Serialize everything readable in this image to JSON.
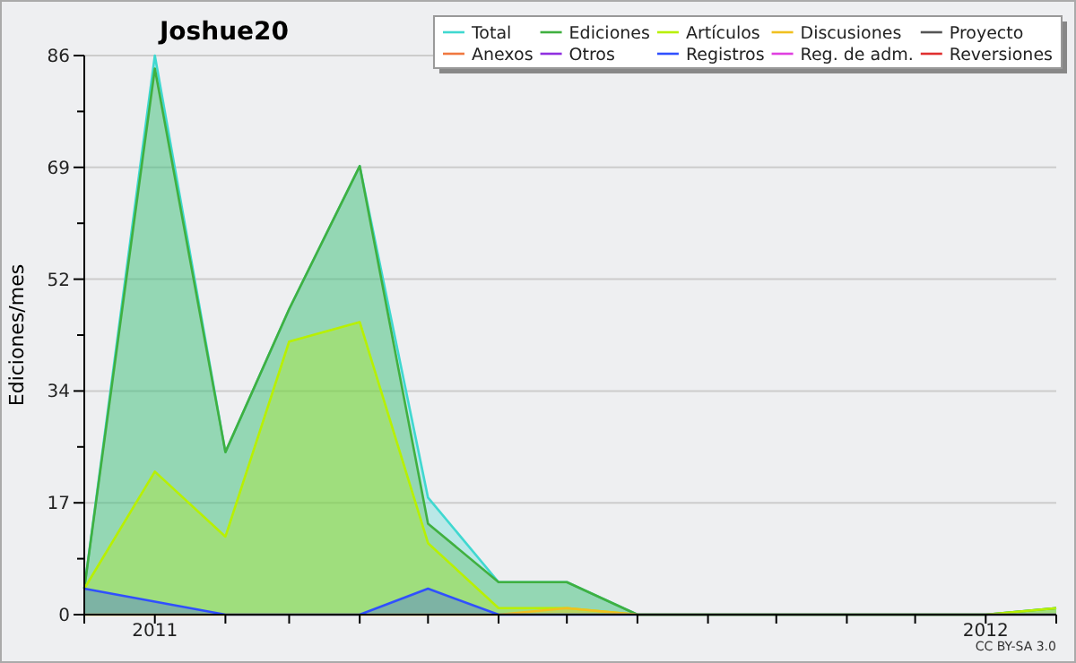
{
  "chart_data": {
    "type": "area",
    "title": "Joshue20",
    "ylabel": "Ediciones/mes",
    "x": [
      "2010-12",
      "2011-01",
      "2011-02",
      "2011-03",
      "2011-04",
      "2011-05",
      "2011-06",
      "2011-07",
      "2011-08",
      "2011-09",
      "2011-10",
      "2011-11",
      "2011-12",
      "2012-01",
      "2012-02"
    ],
    "xlim": [
      "2010-12",
      "2012-02"
    ],
    "xticks": [
      {
        "value": "2010-12",
        "label": null
      },
      {
        "value": "2011-01",
        "label": "2011"
      },
      {
        "value": "2011-02",
        "label": null
      },
      {
        "value": "2011-03",
        "label": null
      },
      {
        "value": "2011-04",
        "label": null
      },
      {
        "value": "2011-05",
        "label": null
      },
      {
        "value": "2011-06",
        "label": null
      },
      {
        "value": "2011-07",
        "label": null
      },
      {
        "value": "2011-08",
        "label": null
      },
      {
        "value": "2011-09",
        "label": null
      },
      {
        "value": "2011-10",
        "label": null
      },
      {
        "value": "2011-11",
        "label": null
      },
      {
        "value": "2011-12",
        "label": null
      },
      {
        "value": "2012-01",
        "label": "2012"
      },
      {
        "value": "2012-02",
        "label": null
      }
    ],
    "ylim": [
      0,
      86
    ],
    "yticks": [
      0,
      {
        "value": 8.6,
        "label": null
      },
      {
        "value": 17.2,
        "label": "17"
      },
      {
        "value": 25.8,
        "label": null
      },
      {
        "value": 34.4,
        "label": "34"
      },
      {
        "value": 43,
        "label": null
      },
      {
        "value": 51.6,
        "label": "52"
      },
      {
        "value": 60.2,
        "label": null
      },
      {
        "value": 68.8,
        "label": "69"
      },
      {
        "value": 77.4,
        "label": null
      },
      86
    ],
    "grid": "y",
    "legend": "top right",
    "marker": "none",
    "line_style": "solid",
    "annotations": [
      "CC BY-SA 3.0"
    ],
    "series": [
      {
        "name": "Total",
        "color": "#40d8d0",
        "values": [
          4,
          86,
          25,
          47,
          69,
          18,
          5,
          5,
          0,
          0,
          0,
          0,
          0,
          0,
          1
        ]
      },
      {
        "name": "Ediciones",
        "color": "#40b040",
        "values": [
          4,
          84,
          25,
          47,
          69,
          14,
          5,
          5,
          0,
          0,
          0,
          0,
          0,
          0,
          1
        ]
      },
      {
        "name": "Artículos",
        "color": "#b8f000",
        "values": [
          4,
          22,
          12,
          42,
          45,
          11,
          1,
          1,
          0,
          0,
          0,
          0,
          0,
          0,
          1
        ]
      },
      {
        "name": "Discusiones",
        "color": "#f0c020",
        "values": [
          0,
          0,
          0,
          0,
          0,
          0,
          0,
          1,
          0,
          0,
          0,
          0,
          0,
          0,
          0
        ]
      },
      {
        "name": "Proyecto",
        "color": "#555555",
        "values": [
          null,
          null,
          null,
          null,
          null,
          null,
          null,
          null,
          null,
          null,
          null,
          null,
          null,
          null,
          null
        ]
      },
      {
        "name": "Anexos",
        "color": "#f07840",
        "values": [
          null,
          null,
          null,
          null,
          null,
          null,
          null,
          null,
          null,
          null,
          null,
          null,
          null,
          null,
          null
        ]
      },
      {
        "name": "Otros",
        "color": "#9030e0",
        "values": [
          null,
          null,
          null,
          null,
          null,
          null,
          null,
          null,
          null,
          null,
          null,
          null,
          null,
          null,
          null
        ]
      },
      {
        "name": "Registros",
        "color": "#3050ff",
        "values": [
          4,
          2,
          0,
          0,
          0,
          4,
          0,
          0,
          0,
          0,
          0,
          0,
          0,
          0,
          0
        ]
      },
      {
        "name": "Reg. de adm.",
        "color": "#e040e0",
        "values": [
          null,
          null,
          null,
          null,
          null,
          null,
          null,
          null,
          null,
          null,
          null,
          null,
          null,
          null,
          null
        ]
      },
      {
        "name": "Reversiones",
        "color": "#e03030",
        "values": [
          null,
          null,
          null,
          null,
          null,
          null,
          null,
          null,
          null,
          null,
          null,
          null,
          null,
          null,
          null
        ]
      }
    ]
  }
}
